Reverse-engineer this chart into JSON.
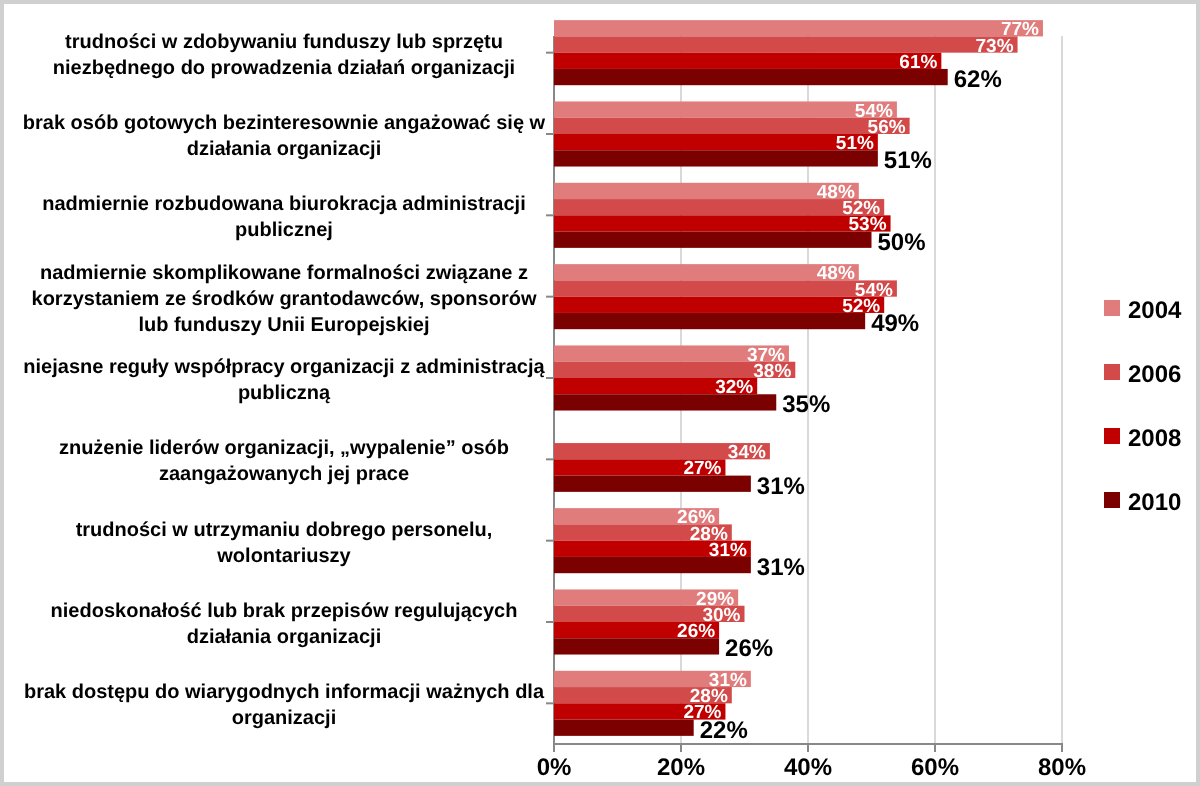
{
  "chart_data": {
    "type": "bar",
    "orientation": "horizontal",
    "categories": [
      "trudności w zdobywaniu funduszy lub sprzętu niezbędnego do prowadzenia działań organizacji",
      "brak osób gotowych bezinteresownie angażować się w działania organizacji",
      "nadmiernie rozbudowana biurokracja administracji publicznej",
      "nadmiernie skomplikowane formalności związane z korzystaniem ze środków grantodawców, sponsorów lub funduszy Unii Europejskiej",
      "niejasne reguły współpracy organizacji z administracją publiczną",
      "znużenie liderów organizacji, „wypalenie” osób zaangażowanych jej prace",
      "trudności w utrzymaniu dobrego personelu, wolontariuszy",
      "niedoskonałość lub brak przepisów regulujących działania organizacji",
      "brak dostępu do wiarygodnych informacji ważnych dla organizacji"
    ],
    "series": [
      {
        "name": "2004",
        "color": "#e07c7c",
        "values": [
          77,
          54,
          48,
          48,
          37,
          null,
          26,
          29,
          31
        ],
        "value_labels": [
          "77%",
          "54%",
          "48%",
          "48%",
          "37%",
          null,
          "26%",
          "29%",
          "31%"
        ]
      },
      {
        "name": "2006",
        "color": "#d24a4a",
        "values": [
          73,
          56,
          52,
          54,
          38,
          34,
          28,
          30,
          28
        ],
        "value_labels": [
          "73%",
          "56%",
          "52%",
          "54%",
          "38%",
          "34%",
          "28%",
          "30%",
          "28%"
        ]
      },
      {
        "name": "2008",
        "color": "#c00000",
        "values": [
          61,
          51,
          53,
          52,
          32,
          27,
          31,
          26,
          27
        ],
        "value_labels": [
          "61%",
          "51%",
          "53%",
          "52%",
          "32%",
          "27%",
          "31%",
          "26%",
          "27%"
        ]
      },
      {
        "name": "2010",
        "color": "#7b0000",
        "values": [
          62,
          51,
          50,
          49,
          35,
          31,
          31,
          26,
          22
        ],
        "value_labels": [
          "62%",
          "51%",
          "50%",
          "49%",
          "35%",
          "31%",
          "31%",
          "26%",
          "22%"
        ]
      }
    ],
    "xlim": [
      0,
      80
    ],
    "xticks": [
      {
        "value": 0,
        "label": "0%"
      },
      {
        "value": 20,
        "label": "20%"
      },
      {
        "value": 40,
        "label": "40%"
      },
      {
        "value": 60,
        "label": "60%"
      },
      {
        "value": 80,
        "label": "80%"
      }
    ],
    "grid": "x",
    "legend": "right"
  }
}
